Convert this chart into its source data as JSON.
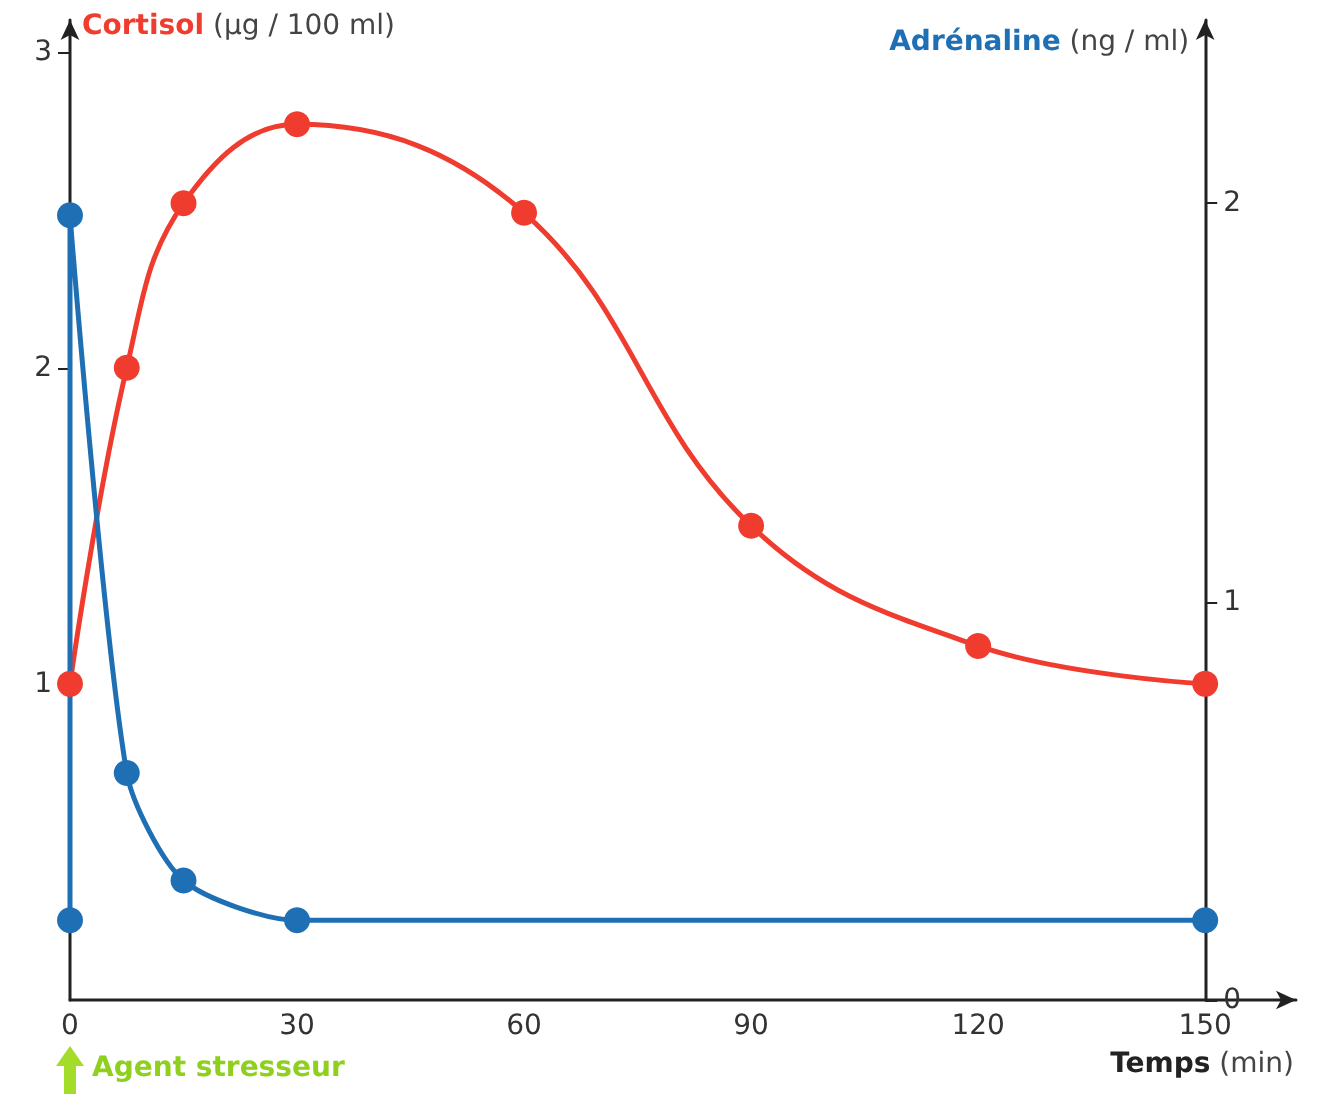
{
  "chart_data": {
    "type": "line",
    "xlabel": "Temps (min)",
    "ylabel": "Cortisol (µg / 100 ml)",
    "y2label": "Adrénaline (ng / ml)",
    "annotations": [
      "Agent stresseur"
    ],
    "series": [
      {
        "color": "#f03c2e",
        "x": [
          0,
          7.5,
          15,
          30,
          60,
          90,
          120,
          150
        ],
        "values": [
          1.0,
          2.0,
          2.52,
          2.77,
          2.49,
          1.5,
          1.12,
          1.0
        ]
      },
      {
        "color": "#1f6fb4",
        "axis": "y2",
        "x": [
          0,
          0,
          7.5,
          15,
          30,
          150
        ],
        "values": [
          0.2,
          1.97,
          0.57,
          0.3,
          0.2,
          0.2
        ]
      }
    ],
    "xlim": [
      0,
      162
    ],
    "xticks": [
      0,
      30,
      60,
      90,
      120,
      150
    ],
    "ylim": [
      0,
      3.1
    ],
    "yticks": [
      1,
      2,
      3
    ],
    "y2lim": [
      0,
      2.46
    ],
    "y2ticks": [
      0,
      1,
      2
    ],
    "grid": false,
    "marker": "circle",
    "line_style": "solid"
  }
}
